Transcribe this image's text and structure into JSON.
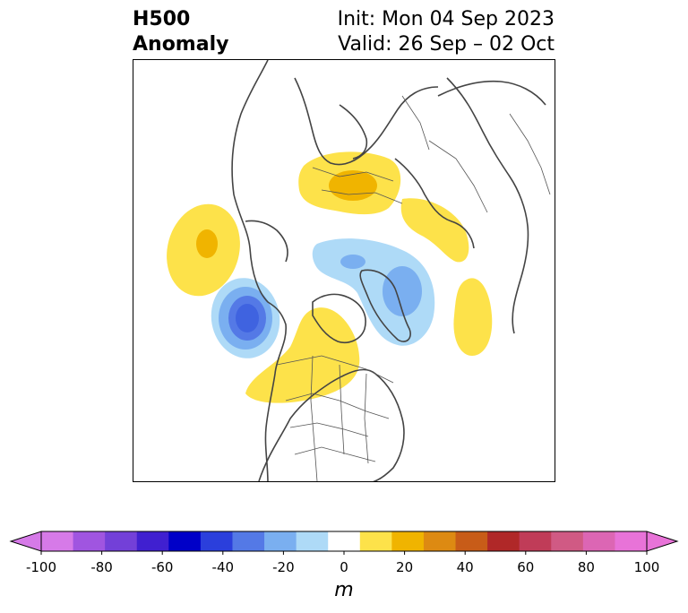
{
  "title": {
    "left_line1": "H500",
    "left_line2": "Anomaly",
    "right_line1": "Init: Mon 04 Sep 2023",
    "right_line2": "Valid: 26 Sep – 02 Oct"
  },
  "map": {
    "projection": "polar stereographic (north pole)",
    "field": "500 hPa geopotential height anomaly",
    "features": [
      {
        "label": "positive",
        "region": "North Pacific",
        "value_m": 20
      },
      {
        "label": "negative",
        "region": "Gulf of Alaska",
        "value_m": -50
      },
      {
        "label": "positive",
        "region": "western Canada",
        "value_m": 10
      },
      {
        "label": "negative",
        "region": "Greenland / Baffin",
        "value_m": -30
      },
      {
        "label": "positive",
        "region": "Scandinavia / western Russia",
        "value_m": 20
      },
      {
        "label": "positive",
        "region": "Siberia",
        "value_m": 10
      },
      {
        "label": "negative",
        "region": "Arctic Ocean / Kara Sea",
        "value_m": -20
      },
      {
        "label": "positive",
        "region": "east of Hudson Bay",
        "value_m": 10
      }
    ]
  },
  "colorbar": {
    "unit": "m",
    "extend": "both",
    "bounds": [
      -100,
      -90,
      -80,
      -70,
      -60,
      -50,
      -40,
      -30,
      -20,
      -10,
      10,
      20,
      30,
      40,
      50,
      60,
      70,
      80,
      90,
      100
    ],
    "colors": [
      "#d67ae8",
      "#a055e0",
      "#7340d8",
      "#4020d0",
      "#0000c8",
      "#2b3fdc",
      "#5479e6",
      "#7aaff0",
      "#aedaf7",
      "#ffffff",
      "#fde24a",
      "#f0b400",
      "#dd8a12",
      "#c85c18",
      "#b02828",
      "#c03c58",
      "#d05a84",
      "#dc66b4",
      "#e873d8"
    ],
    "under_color": "#d67ae8",
    "over_color": "#e873d8",
    "tick_labels": [
      "-100",
      "-80",
      "-60",
      "-40",
      "-20",
      "0",
      "20",
      "40",
      "60",
      "80",
      "100"
    ],
    "tick_values": [
      -100,
      -80,
      -60,
      -40,
      -20,
      0,
      20,
      40,
      60,
      80,
      100
    ]
  }
}
